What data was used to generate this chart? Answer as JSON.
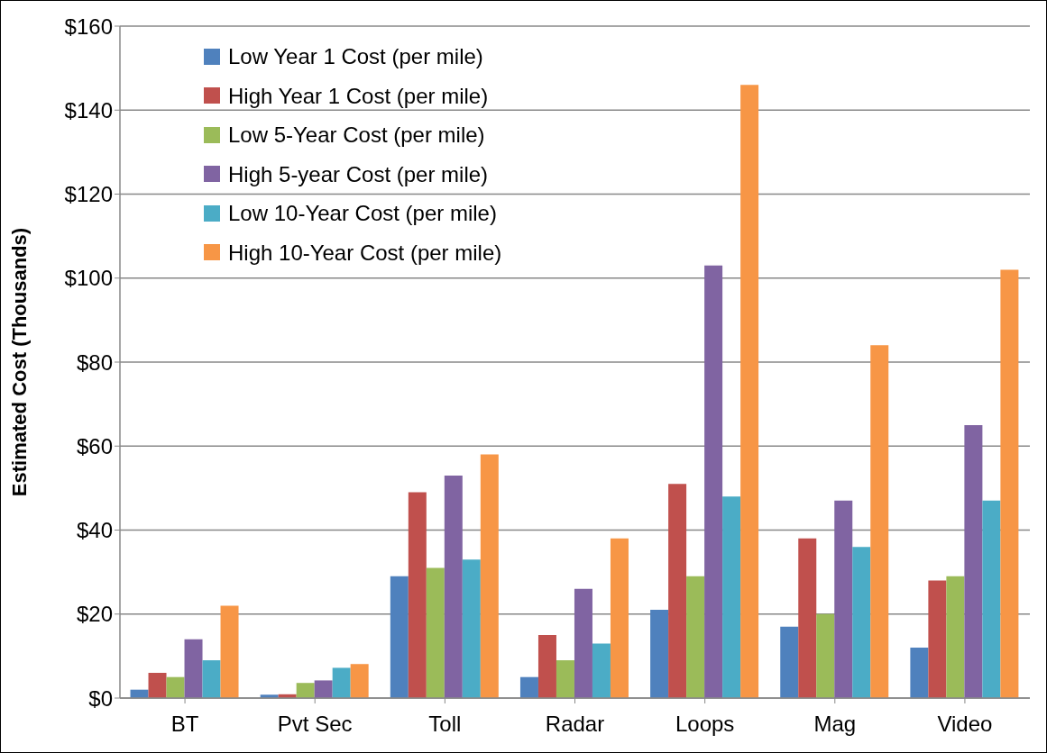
{
  "chart_data": {
    "type": "bar",
    "ylabel": "Estimated Cost (Thousands)",
    "categories": [
      "BT",
      "Pvt Sec",
      "Toll",
      "Radar",
      "Loops",
      "Mag",
      "Video"
    ],
    "series": [
      {
        "name": "Low Year 1 Cost (per mile)",
        "color": "#4f81bd",
        "values": [
          2,
          0.8,
          29,
          5,
          21,
          17,
          12
        ]
      },
      {
        "name": "High Year 1 Cost (per mile)",
        "color": "#c0504d",
        "values": [
          6,
          0.9,
          49,
          15,
          51,
          38,
          28
        ]
      },
      {
        "name": "Low 5-Year Cost (per mile)",
        "color": "#9bbb59",
        "values": [
          5,
          3.6,
          31,
          9,
          29,
          20,
          29
        ]
      },
      {
        "name": "High 5-year Cost (per mile)",
        "color": "#8064a2",
        "values": [
          14,
          4.2,
          53,
          26,
          103,
          47,
          65
        ]
      },
      {
        "name": "Low 10-Year Cost (per mile)",
        "color": "#4bacc6",
        "values": [
          9,
          7.2,
          33,
          13,
          48,
          36,
          47
        ]
      },
      {
        "name": "High 10-Year Cost (per mile)",
        "color": "#f79646",
        "values": [
          22,
          8.1,
          58,
          38,
          146,
          84,
          102
        ]
      }
    ],
    "ylim": [
      0,
      160
    ],
    "yticks": [
      {
        "value": 0,
        "label": "$0"
      },
      {
        "value": 20,
        "label": "$20"
      },
      {
        "value": 40,
        "label": "$40"
      },
      {
        "value": 60,
        "label": "$60"
      },
      {
        "value": 80,
        "label": "$80"
      },
      {
        "value": 100,
        "label": "$100"
      },
      {
        "value": 120,
        "label": "$120"
      },
      {
        "value": 140,
        "label": "$140"
      },
      {
        "value": 160,
        "label": "$160"
      }
    ],
    "grid": "y",
    "legend": "top left"
  }
}
